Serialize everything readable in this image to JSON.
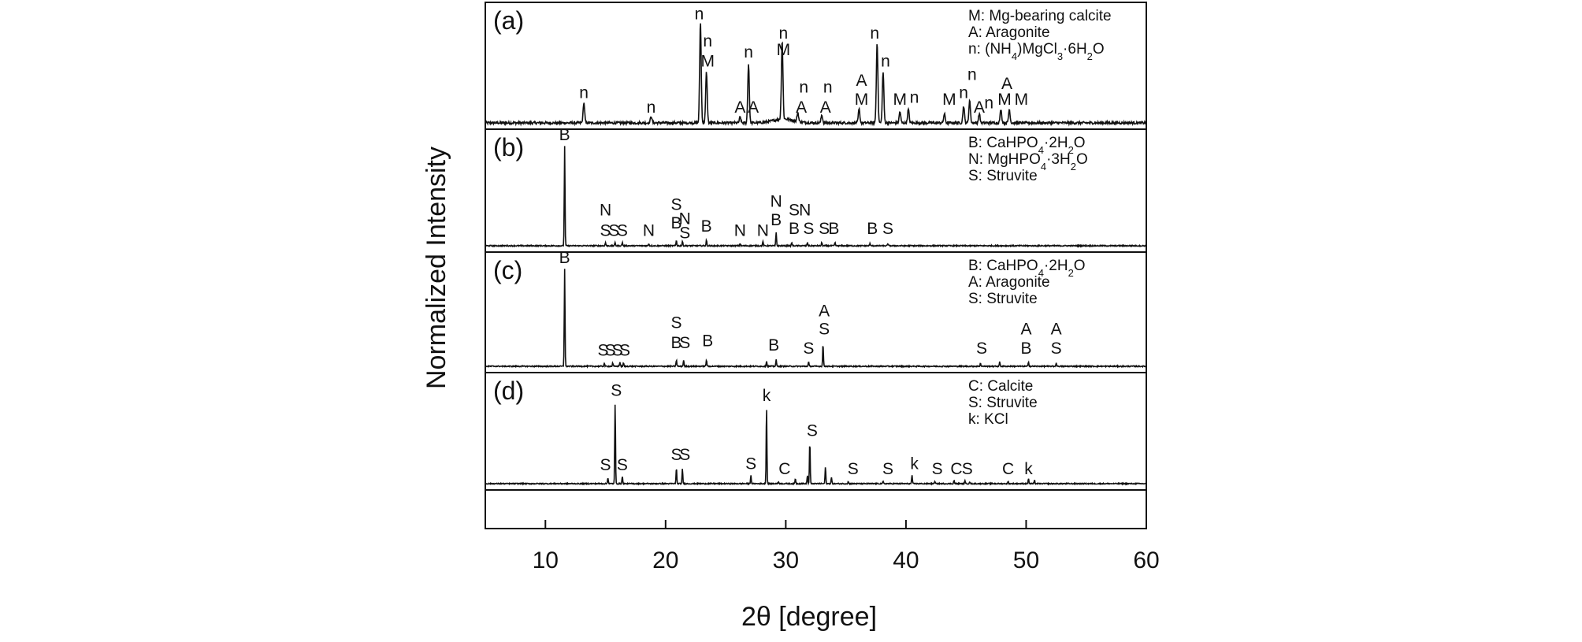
{
  "chart_data": {
    "type": "line",
    "xlabel": "2θ [degree]",
    "ylabel": "Normalized Intensity",
    "xlim": [
      5,
      60
    ],
    "xticks": [
      10,
      20,
      30,
      40,
      50,
      60
    ],
    "panels": [
      {
        "label": "(a)",
        "legend": [
          [
            {
              "t": "M: Mg-bearing calcite"
            }
          ],
          [
            {
              "t": "A: Aragonite"
            }
          ],
          [
            {
              "t": "n: (NH"
            },
            {
              "t": "4",
              "sub": true
            },
            {
              "t": ")MgCl"
            },
            {
              "t": "3",
              "sub": true
            },
            {
              "t": "·6H"
            },
            {
              "t": "2",
              "sub": true
            },
            {
              "t": "O"
            }
          ]
        ],
        "peaks": [
          {
            "x": 13.2,
            "h": 0.18
          },
          {
            "x": 18.8,
            "h": 0.06
          },
          {
            "x": 22.9,
            "h": 0.9
          },
          {
            "x": 23.4,
            "h": 0.45
          },
          {
            "x": 26.2,
            "h": 0.05
          },
          {
            "x": 26.9,
            "h": 0.52
          },
          {
            "x": 29.7,
            "h": 0.7
          },
          {
            "x": 31.0,
            "h": 0.08
          },
          {
            "x": 33.0,
            "h": 0.07
          },
          {
            "x": 36.1,
            "h": 0.12
          },
          {
            "x": 37.6,
            "h": 0.72
          },
          {
            "x": 38.1,
            "h": 0.45
          },
          {
            "x": 39.5,
            "h": 0.1
          },
          {
            "x": 40.2,
            "h": 0.12
          },
          {
            "x": 43.2,
            "h": 0.08
          },
          {
            "x": 44.8,
            "h": 0.15
          },
          {
            "x": 45.3,
            "h": 0.2
          },
          {
            "x": 46.1,
            "h": 0.08
          },
          {
            "x": 47.9,
            "h": 0.12
          },
          {
            "x": 48.6,
            "h": 0.12
          }
        ],
        "annotations": [
          {
            "text": "n",
            "x": 13.2,
            "y": 0.22
          },
          {
            "text": "n",
            "x": 18.8,
            "y": 0.09
          },
          {
            "text": "n",
            "x": 22.8,
            "y": 0.92
          },
          {
            "text": "n",
            "x": 23.5,
            "y": 0.68
          },
          {
            "text": "M",
            "x": 23.5,
            "y": 0.5
          },
          {
            "text": "A",
            "x": 26.2,
            "y": 0.09
          },
          {
            "text": "A",
            "x": 27.3,
            "y": 0.09
          },
          {
            "text": "n",
            "x": 26.9,
            "y": 0.58
          },
          {
            "text": "n",
            "x": 29.8,
            "y": 0.75
          },
          {
            "text": "M",
            "x": 29.8,
            "y": 0.6
          },
          {
            "text": "n",
            "x": 31.5,
            "y": 0.27
          },
          {
            "text": "A",
            "x": 31.3,
            "y": 0.09
          },
          {
            "text": "n",
            "x": 33.5,
            "y": 0.27
          },
          {
            "text": "A",
            "x": 33.3,
            "y": 0.09
          },
          {
            "text": "A",
            "x": 36.3,
            "y": 0.33
          },
          {
            "text": "M",
            "x": 36.3,
            "y": 0.16
          },
          {
            "text": "n",
            "x": 37.4,
            "y": 0.75
          },
          {
            "text": "n",
            "x": 38.3,
            "y": 0.5
          },
          {
            "text": "M",
            "x": 39.5,
            "y": 0.16
          },
          {
            "text": "n",
            "x": 40.7,
            "y": 0.18
          },
          {
            "text": "M",
            "x": 43.6,
            "y": 0.16
          },
          {
            "text": "n",
            "x": 44.8,
            "y": 0.22
          },
          {
            "text": "n",
            "x": 45.5,
            "y": 0.38
          },
          {
            "text": "A",
            "x": 46.1,
            "y": 0.09
          },
          {
            "text": "n",
            "x": 46.9,
            "y": 0.13
          },
          {
            "text": "A",
            "x": 48.4,
            "y": 0.3
          },
          {
            "text": "M",
            "x": 48.2,
            "y": 0.16
          },
          {
            "text": "M",
            "x": 49.6,
            "y": 0.16
          }
        ]
      },
      {
        "label": "(b)",
        "legend": [
          [
            {
              "t": "B: CaHPO"
            },
            {
              "t": "4",
              "sub": true
            },
            {
              "t": "·2H"
            },
            {
              "t": "2",
              "sub": true
            },
            {
              "t": "O"
            }
          ],
          [
            {
              "t": "N: MgHPO"
            },
            {
              "t": "4",
              "sub": true
            },
            {
              "t": "·3H"
            },
            {
              "t": "2",
              "sub": true
            },
            {
              "t": "O"
            }
          ],
          [
            {
              "t": "S: Struvite"
            }
          ]
        ],
        "peaks": [
          {
            "x": 11.6,
            "h": 0.92
          },
          {
            "x": 15.0,
            "h": 0.03
          },
          {
            "x": 15.8,
            "h": 0.03
          },
          {
            "x": 16.4,
            "h": 0.03
          },
          {
            "x": 18.6,
            "h": 0.02
          },
          {
            "x": 20.9,
            "h": 0.05
          },
          {
            "x": 21.4,
            "h": 0.04
          },
          {
            "x": 23.4,
            "h": 0.05
          },
          {
            "x": 26.2,
            "h": 0.02
          },
          {
            "x": 28.1,
            "h": 0.04
          },
          {
            "x": 29.2,
            "h": 0.12
          },
          {
            "x": 30.5,
            "h": 0.03
          },
          {
            "x": 31.8,
            "h": 0.03
          },
          {
            "x": 33.0,
            "h": 0.03
          },
          {
            "x": 34.1,
            "h": 0.03
          },
          {
            "x": 37.0,
            "h": 0.02
          },
          {
            "x": 38.5,
            "h": 0.02
          }
        ],
        "annotations": [
          {
            "text": "B",
            "x": 11.6,
            "y": 0.97
          },
          {
            "text": "N",
            "x": 15.0,
            "y": 0.28
          },
          {
            "text": "S",
            "x": 15.0,
            "y": 0.09
          },
          {
            "text": "S",
            "x": 15.7,
            "y": 0.09
          },
          {
            "text": "S",
            "x": 16.4,
            "y": 0.09
          },
          {
            "text": "N",
            "x": 18.6,
            "y": 0.09
          },
          {
            "text": "S",
            "x": 20.9,
            "y": 0.33
          },
          {
            "text": "B",
            "x": 20.9,
            "y": 0.16
          },
          {
            "text": "N",
            "x": 21.6,
            "y": 0.2
          },
          {
            "text": "S",
            "x": 21.6,
            "y": 0.07
          },
          {
            "text": "B",
            "x": 23.4,
            "y": 0.13
          },
          {
            "text": "N",
            "x": 26.2,
            "y": 0.09
          },
          {
            "text": "N",
            "x": 28.1,
            "y": 0.09
          },
          {
            "text": "N",
            "x": 29.2,
            "y": 0.36
          },
          {
            "text": "B",
            "x": 29.2,
            "y": 0.19
          },
          {
            "text": "S",
            "x": 30.7,
            "y": 0.28
          },
          {
            "text": "N",
            "x": 31.6,
            "y": 0.28
          },
          {
            "text": "B",
            "x": 30.7,
            "y": 0.11
          },
          {
            "text": "S",
            "x": 31.9,
            "y": 0.11
          },
          {
            "text": "S",
            "x": 33.2,
            "y": 0.11
          },
          {
            "text": "B",
            "x": 34.0,
            "y": 0.11
          },
          {
            "text": "B",
            "x": 37.2,
            "y": 0.11
          },
          {
            "text": "S",
            "x": 38.5,
            "y": 0.11
          }
        ]
      },
      {
        "label": "(c)",
        "legend": [
          [
            {
              "t": "B: CaHPO"
            },
            {
              "t": "4",
              "sub": true
            },
            {
              "t": "·2H"
            },
            {
              "t": "2",
              "sub": true
            },
            {
              "t": "O"
            }
          ],
          [
            {
              "t": "A: Aragonite"
            }
          ],
          [
            {
              "t": "S: Struvite"
            }
          ]
        ],
        "peaks": [
          {
            "x": 11.6,
            "h": 0.92
          },
          {
            "x": 14.9,
            "h": 0.03
          },
          {
            "x": 15.6,
            "h": 0.03
          },
          {
            "x": 16.2,
            "h": 0.04
          },
          {
            "x": 16.5,
            "h": 0.03
          },
          {
            "x": 20.9,
            "h": 0.06
          },
          {
            "x": 21.5,
            "h": 0.06
          },
          {
            "x": 23.4,
            "h": 0.06
          },
          {
            "x": 28.4,
            "h": 0.05
          },
          {
            "x": 29.2,
            "h": 0.06
          },
          {
            "x": 31.9,
            "h": 0.04
          },
          {
            "x": 33.1,
            "h": 0.21
          },
          {
            "x": 46.2,
            "h": 0.03
          },
          {
            "x": 47.8,
            "h": 0.04
          },
          {
            "x": 50.2,
            "h": 0.04
          },
          {
            "x": 52.5,
            "h": 0.03
          }
        ],
        "annotations": [
          {
            "text": "B",
            "x": 11.6,
            "y": 0.97
          },
          {
            "text": "S",
            "x": 14.8,
            "y": 0.1
          },
          {
            "text": "S",
            "x": 15.4,
            "y": 0.1
          },
          {
            "text": "S",
            "x": 16.0,
            "y": 0.1
          },
          {
            "text": "S",
            "x": 16.6,
            "y": 0.1
          },
          {
            "text": "S",
            "x": 20.9,
            "y": 0.36
          },
          {
            "text": "B",
            "x": 20.9,
            "y": 0.17
          },
          {
            "text": "S",
            "x": 21.6,
            "y": 0.17
          },
          {
            "text": "B",
            "x": 23.5,
            "y": 0.19
          },
          {
            "text": "B",
            "x": 29.0,
            "y": 0.15
          },
          {
            "text": "S",
            "x": 31.9,
            "y": 0.12
          },
          {
            "text": "A",
            "x": 33.2,
            "y": 0.47
          },
          {
            "text": "S",
            "x": 33.2,
            "y": 0.3
          },
          {
            "text": "S",
            "x": 46.3,
            "y": 0.12
          },
          {
            "text": "A",
            "x": 50.0,
            "y": 0.3
          },
          {
            "text": "B",
            "x": 50.0,
            "y": 0.12
          },
          {
            "text": "A",
            "x": 52.5,
            "y": 0.3
          },
          {
            "text": "S",
            "x": 52.5,
            "y": 0.12
          }
        ]
      },
      {
        "label": "(d)",
        "legend": [
          [
            {
              "t": "C: Calcite"
            }
          ],
          [
            {
              "t": "S: Struvite"
            }
          ],
          [
            {
              "t": "k: KCl"
            }
          ]
        ],
        "peaks": [
          {
            "x": 15.2,
            "h": 0.06
          },
          {
            "x": 15.8,
            "h": 0.78
          },
          {
            "x": 16.4,
            "h": 0.07
          },
          {
            "x": 20.9,
            "h": 0.15
          },
          {
            "x": 21.4,
            "h": 0.14
          },
          {
            "x": 27.1,
            "h": 0.08
          },
          {
            "x": 28.4,
            "h": 0.75
          },
          {
            "x": 29.4,
            "h": 0.02
          },
          {
            "x": 30.8,
            "h": 0.05
          },
          {
            "x": 31.8,
            "h": 0.08
          },
          {
            "x": 32.0,
            "h": 0.41
          },
          {
            "x": 33.3,
            "h": 0.16
          },
          {
            "x": 33.8,
            "h": 0.06
          },
          {
            "x": 35.2,
            "h": 0.02
          },
          {
            "x": 38.1,
            "h": 0.02
          },
          {
            "x": 40.5,
            "h": 0.08
          },
          {
            "x": 42.4,
            "h": 0.02
          },
          {
            "x": 44.0,
            "h": 0.03
          },
          {
            "x": 44.9,
            "h": 0.03
          },
          {
            "x": 45.3,
            "h": 0.02
          },
          {
            "x": 48.5,
            "h": 0.02
          },
          {
            "x": 50.2,
            "h": 0.05
          },
          {
            "x": 50.7,
            "h": 0.03
          }
        ],
        "annotations": [
          {
            "text": "S",
            "x": 15.9,
            "y": 0.85
          },
          {
            "text": "S",
            "x": 15.0,
            "y": 0.13
          },
          {
            "text": "S",
            "x": 16.4,
            "y": 0.13
          },
          {
            "text": "S",
            "x": 20.9,
            "y": 0.23
          },
          {
            "text": "S",
            "x": 21.6,
            "y": 0.23
          },
          {
            "text": "S",
            "x": 27.1,
            "y": 0.14
          },
          {
            "text": "k",
            "x": 28.4,
            "y": 0.8
          },
          {
            "text": "C",
            "x": 29.9,
            "y": 0.09
          },
          {
            "text": "S",
            "x": 32.2,
            "y": 0.46
          },
          {
            "text": "S",
            "x": 35.6,
            "y": 0.09
          },
          {
            "text": "S",
            "x": 38.5,
            "y": 0.09
          },
          {
            "text": "k",
            "x": 40.7,
            "y": 0.14
          },
          {
            "text": "S",
            "x": 42.6,
            "y": 0.09
          },
          {
            "text": "C",
            "x": 44.2,
            "y": 0.09
          },
          {
            "text": "S",
            "x": 45.1,
            "y": 0.09
          },
          {
            "text": "C",
            "x": 48.5,
            "y": 0.09
          },
          {
            "text": "k",
            "x": 50.2,
            "y": 0.09
          }
        ]
      }
    ]
  }
}
